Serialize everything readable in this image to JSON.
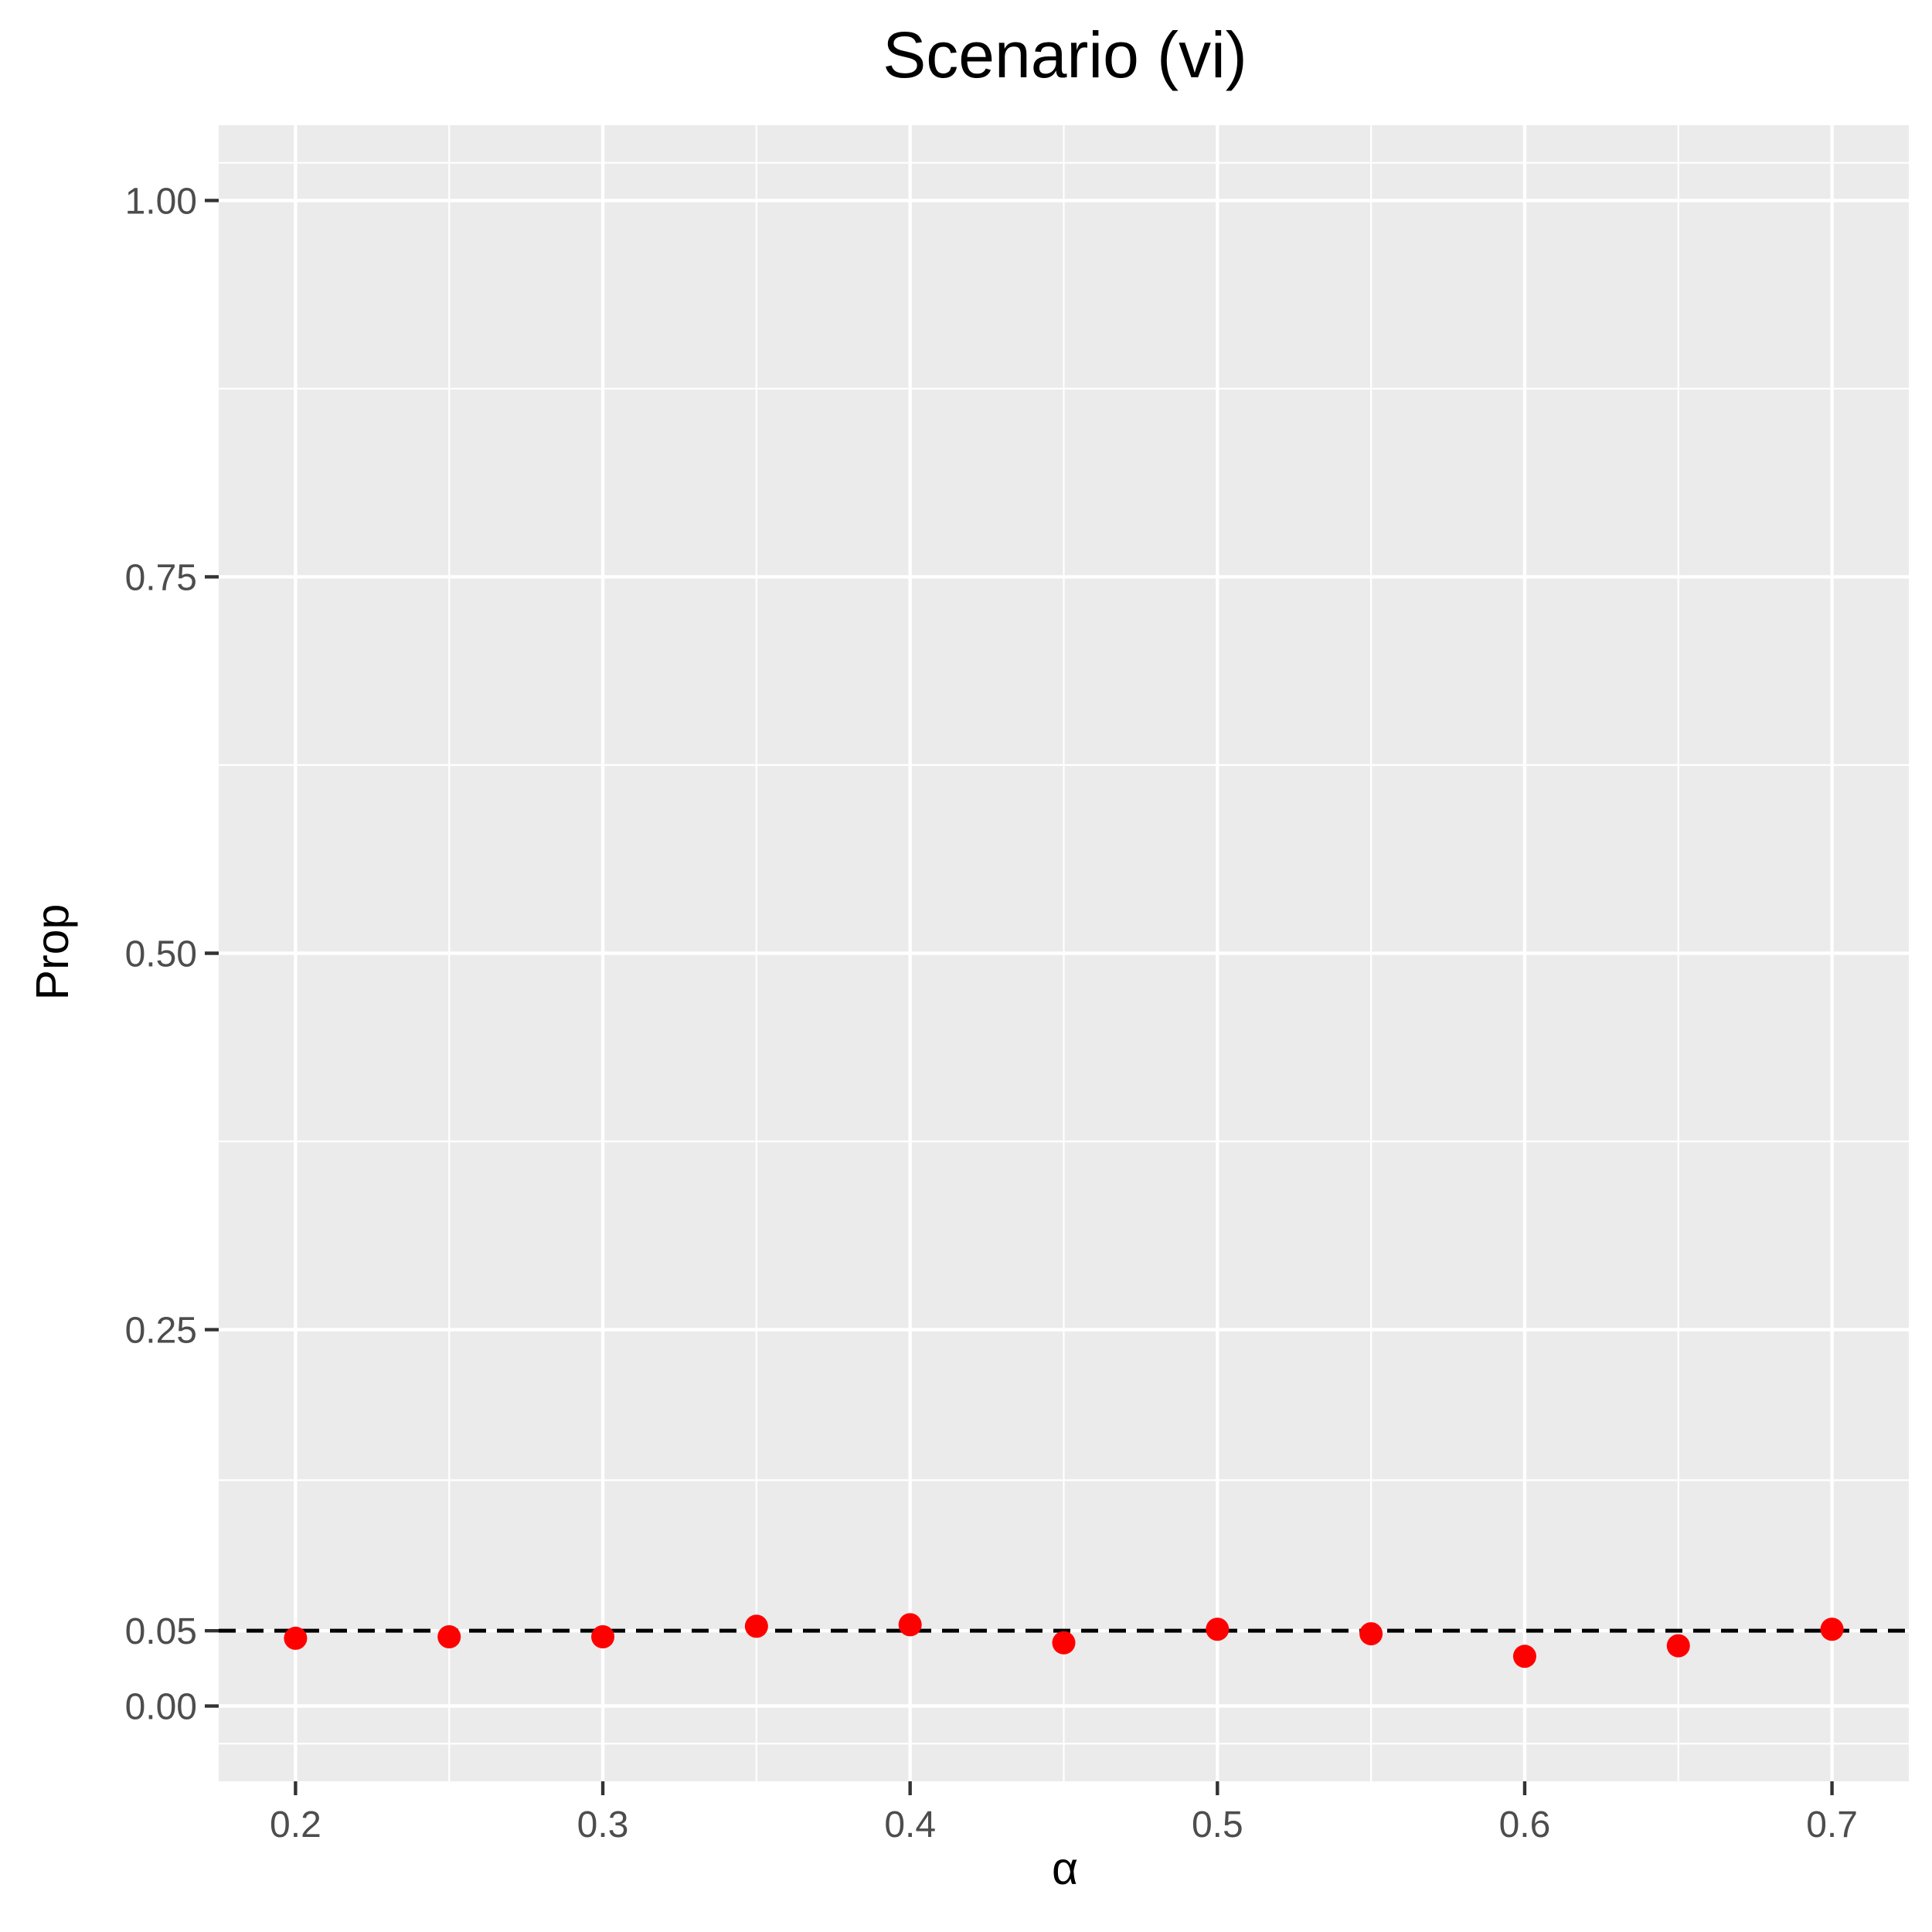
{
  "chart_data": {
    "type": "scatter",
    "title": "Scenario (vi)",
    "xlabel": "α",
    "ylabel": "Prop",
    "x": [
      0.2,
      0.25,
      0.3,
      0.35,
      0.4,
      0.45,
      0.5,
      0.55,
      0.6,
      0.65,
      0.7
    ],
    "y": [
      0.045,
      0.046,
      0.046,
      0.053,
      0.054,
      0.042,
      0.051,
      0.048,
      0.033,
      0.04,
      0.051
    ],
    "xlim": [
      0.175,
      0.725
    ],
    "ylim": [
      -0.05,
      1.05
    ],
    "xticks": [
      0.2,
      0.3,
      0.4,
      0.5,
      0.6,
      0.7
    ],
    "xtick_labels": [
      "0.2",
      "0.3",
      "0.4",
      "0.5",
      "0.6",
      "0.7"
    ],
    "yticks": [
      0.0,
      0.05,
      0.25,
      0.5,
      0.75,
      1.0
    ],
    "ytick_labels": [
      "0.00",
      "0.05",
      "0.25",
      "0.50",
      "0.75",
      "1.00"
    ],
    "x_minor_gridlines": [
      0.25,
      0.35,
      0.45,
      0.55,
      0.65
    ],
    "y_minor_gridlines": [
      -0.025,
      0.15,
      0.375,
      0.625,
      0.875,
      1.025
    ],
    "reference_line": {
      "y": 0.05,
      "style": "dashed",
      "color": "#000000"
    },
    "point_color": "#ff0000",
    "panel_background": "#ebebeb",
    "grid": true,
    "legend": "none"
  }
}
